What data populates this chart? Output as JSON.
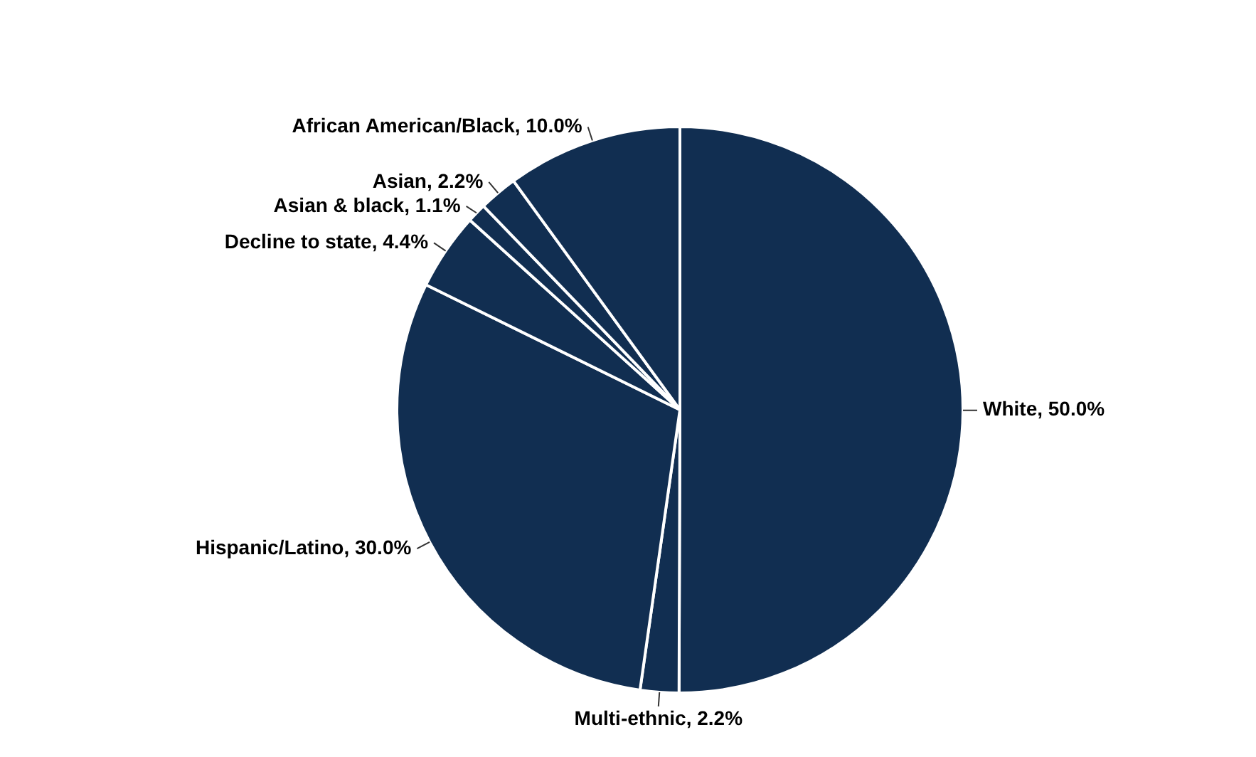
{
  "chart_data": {
    "type": "pie",
    "categories": [
      "White",
      "Multi-ethnic",
      "Hispanic/Latino",
      "Decline to state",
      "Asian & black",
      "Asian",
      "African American/Black"
    ],
    "values": [
      50.0,
      2.2,
      30.0,
      4.4,
      1.1,
      2.2,
      10.0
    ],
    "value_labels": [
      "50.0%",
      "2.2%",
      "30.0%",
      "4.4%",
      "1.1%",
      "2.2%",
      "10.0%"
    ],
    "colors": [
      "#112e51",
      "#112e51",
      "#112e51",
      "#112e51",
      "#112e51",
      "#112e51",
      "#112e51"
    ],
    "legend": false
  }
}
